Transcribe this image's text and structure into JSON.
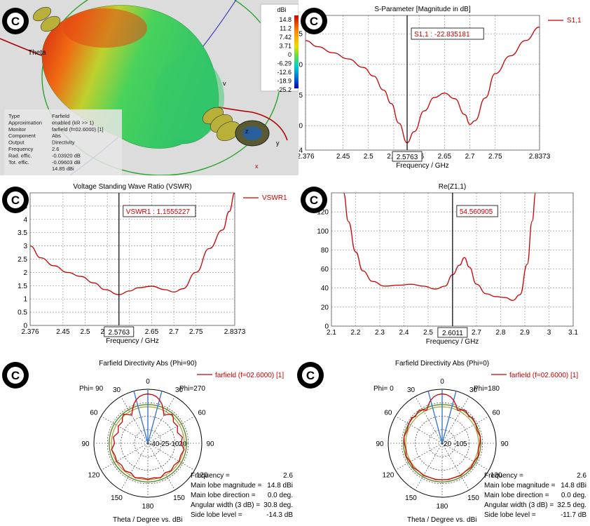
{
  "copyright_mark": "C",
  "colors": {
    "curve": "#cc0000",
    "grid": "#999999",
    "marker": "#000000",
    "blue": "#3a78c9",
    "green": "#5a8a2a",
    "olive": "#a89c3a"
  },
  "farfield3d": {
    "axis_label": "Theta",
    "scale_unit": "dBi",
    "scale_values": [
      "14.8",
      "11.2",
      "7.42",
      "3.71",
      "0",
      "-6.29",
      "-12.6",
      "-18.9",
      "-25.2"
    ],
    "axis_letters": {
      "z": "z",
      "y": "y",
      "x": "x",
      "v": "v"
    },
    "info": [
      {
        "key": "Type",
        "value": "Farfield"
      },
      {
        "key": "Approximation",
        "value": "enabled (kR >> 1)"
      },
      {
        "key": "Monitor",
        "value": "farfield (f=02.6000) [1]"
      },
      {
        "key": "Component",
        "value": "Abs"
      },
      {
        "key": "Output",
        "value": "Directivity"
      },
      {
        "key": "Frequency",
        "value": "2.6"
      },
      {
        "key": "Rad. effic.",
        "value": "-0.03920 dB"
      },
      {
        "key": "Tot. effic.",
        "value": "-0.09603 dB"
      },
      {
        "key": "",
        "value": "14.85 dBi"
      }
    ]
  },
  "chart_data": [
    {
      "id": "s11",
      "type": "line",
      "title": "S-Parameter [Magnitude in dB]",
      "xlabel": "Frequency / GHz",
      "ylabel": "",
      "xlim": [
        2.376,
        2.8373
      ],
      "ylim": [
        -24,
        -2
      ],
      "xticks": [
        "2.376",
        "2.45",
        "2.5",
        "2.55",
        "2.6",
        "2.65",
        "2.7",
        "2.75",
        "2.8373"
      ],
      "xtick_values": [
        2.376,
        2.45,
        2.5,
        2.55,
        2.6,
        2.65,
        2.7,
        2.75,
        2.8373
      ],
      "yticks": [
        "-5",
        "-10",
        "-15",
        "-20",
        "-24"
      ],
      "ytick_values": [
        -5,
        -10,
        -15,
        -20,
        -24
      ],
      "grid": true,
      "legend": "top-right",
      "series": [
        {
          "name": "S1,1",
          "x": [
            2.376,
            2.4,
            2.43,
            2.46,
            2.49,
            2.51,
            2.53,
            2.545,
            2.56,
            2.5763,
            2.59,
            2.61,
            2.63,
            2.65,
            2.67,
            2.69,
            2.7,
            2.71,
            2.73,
            2.75,
            2.78,
            2.81,
            2.8373
          ],
          "y": [
            -6.1,
            -7.1,
            -8.1,
            -9.1,
            -10.5,
            -11.9,
            -14.2,
            -16.4,
            -19.6,
            -22.8,
            -21.0,
            -17.6,
            -15.4,
            -14.7,
            -15.6,
            -18.2,
            -19.8,
            -19.2,
            -15.5,
            -11.5,
            -8.6,
            -6.1,
            -3.9
          ]
        }
      ],
      "marker": {
        "x": 2.5763,
        "label": "S1,1 : -22.835181",
        "x_label": "2.5763"
      }
    },
    {
      "id": "vswr",
      "type": "line",
      "title": "Voltage Standing Wave Ratio (VSWR)",
      "xlabel": "Frequency / GHz",
      "ylabel": "",
      "xlim": [
        2.376,
        2.8373
      ],
      "ylim": [
        0,
        5
      ],
      "xticks": [
        "2.376",
        "2.45",
        "2.5",
        "2.55",
        "2.6",
        "2.65",
        "2.7",
        "2.75",
        "2.8373"
      ],
      "xtick_values": [
        2.376,
        2.45,
        2.5,
        2.55,
        2.6,
        2.65,
        2.7,
        2.75,
        2.8373
      ],
      "yticks": [
        "0",
        "0.5",
        "1",
        "1.5",
        "2",
        "2.5",
        "3",
        "3.5",
        "4",
        "4.5"
      ],
      "ytick_values": [
        0,
        0.5,
        1,
        1.5,
        2,
        2.5,
        3,
        3.5,
        4,
        4.5
      ],
      "grid": true,
      "legend": "top-right",
      "series": [
        {
          "name": "VSWR1",
          "x": [
            2.376,
            2.4,
            2.43,
            2.46,
            2.49,
            2.52,
            2.545,
            2.5763,
            2.6,
            2.62,
            2.65,
            2.68,
            2.7,
            2.72,
            2.75,
            2.78,
            2.81,
            2.825,
            2.8373
          ],
          "y": [
            3.0,
            2.55,
            2.25,
            2.0,
            1.85,
            1.6,
            1.35,
            1.16,
            1.3,
            1.42,
            1.48,
            1.35,
            1.26,
            1.38,
            2.0,
            2.9,
            3.6,
            4.3,
            5.0
          ]
        }
      ],
      "marker": {
        "x": 2.5763,
        "label": "VSWR1 : 1.1555227",
        "x_label": "2.5763"
      }
    },
    {
      "id": "rez",
      "type": "line",
      "title": "Re(Z1,1)",
      "xlabel": "Frequency / GHz",
      "ylabel": "",
      "xlim": [
        2.1,
        3.1
      ],
      "ylim": [
        0,
        140
      ],
      "xticks": [
        "2.1",
        "2.2",
        "2.3",
        "2.4",
        "2.5",
        "2.6",
        "2.7",
        "2.8",
        "2.9",
        "3",
        "3.1"
      ],
      "xtick_values": [
        2.1,
        2.2,
        2.3,
        2.4,
        2.5,
        2.6,
        2.7,
        2.8,
        2.9,
        3.0,
        3.1
      ],
      "yticks": [
        "0",
        "20",
        "40",
        "60",
        "80",
        "100",
        "120"
      ],
      "ytick_values": [
        0,
        20,
        40,
        60,
        80,
        100,
        120
      ],
      "grid": true,
      "legend": "none",
      "series": [
        {
          "name": "",
          "x": [
            2.15,
            2.17,
            2.2,
            2.23,
            2.27,
            2.32,
            2.38,
            2.43,
            2.48,
            2.53,
            2.57,
            2.6011,
            2.63,
            2.65,
            2.67,
            2.7,
            2.74,
            2.78,
            2.82,
            2.85,
            2.88,
            2.91,
            2.93,
            2.945
          ],
          "y": [
            140,
            110,
            78,
            58,
            47,
            42,
            43,
            44,
            42,
            39,
            42,
            54,
            64,
            72,
            62,
            44,
            34,
            31,
            30,
            27,
            33,
            65,
            110,
            140
          ]
        }
      ],
      "marker": {
        "x": 2.6011,
        "label": "54.560905",
        "x_label": "2.6011"
      }
    },
    {
      "id": "polar90",
      "type": "polar",
      "title": "Farfield Directivity Abs (Phi=90)",
      "legend_label": "farfield (f=02.6000) [1]",
      "left_label": "Phi= 90",
      "right_label": "Phi=270",
      "angle_labels": [
        "0",
        "30",
        "60",
        "90",
        "120",
        "150",
        "180",
        "150",
        "120",
        "90",
        "60",
        "30"
      ],
      "radial_labels": [
        "-40",
        "-25",
        "-10",
        "20"
      ],
      "radial_values": [
        -40,
        -25,
        -10,
        5,
        20
      ],
      "rlim": [
        -40,
        20
      ],
      "xlabel": "Theta / Degree vs. dBi",
      "series": [
        {
          "name": "farfield (f=02.6000) [1]",
          "theta": [
            0,
            5,
            10,
            15,
            20,
            25,
            30,
            35,
            40,
            45,
            50,
            60,
            70,
            80,
            90,
            100,
            110,
            120,
            130,
            140,
            150,
            160,
            170,
            180
          ],
          "r": [
            14.8,
            14.3,
            12.8,
            10.0,
            6.0,
            0.5,
            -4,
            -1,
            2,
            0,
            -3,
            -2,
            -5,
            -1,
            -3,
            1,
            -1,
            0,
            -2,
            0,
            -2,
            1,
            -1,
            0
          ]
        }
      ],
      "info": [
        {
          "key": "Frequency =",
          "value": "2.6"
        },
        {
          "key": "Main lobe magnitude =",
          "value": "14.8 dBi"
        },
        {
          "key": "Main lobe direction =",
          "value": "0.0 deg."
        },
        {
          "key": "Angular width (3 dB) =",
          "value": "30.8 deg."
        },
        {
          "key": "Side lobe level =",
          "value": "-14.3 dB"
        }
      ]
    },
    {
      "id": "polar0",
      "type": "polar",
      "title": "Farfield Directivity Abs (Phi=0)",
      "legend_label": "farfield (f=02.6000) [1]",
      "left_label": "Phi=  0",
      "right_label": "Phi=180",
      "angle_labels": [
        "0",
        "30",
        "60",
        "90",
        "120",
        "150",
        "180",
        "150",
        "120",
        "90",
        "60",
        "30"
      ],
      "radial_labels": [
        "20",
        "-10",
        "5"
      ],
      "radial_values": [
        -40,
        -25,
        -10,
        5,
        20
      ],
      "rlim": [
        -40,
        20
      ],
      "xlabel": "Theta / Degree vs. dBi",
      "series": [
        {
          "name": "farfield (f=02.6000) [1]",
          "theta": [
            0,
            5,
            10,
            15,
            20,
            25,
            30,
            35,
            40,
            45,
            50,
            60,
            70,
            80,
            90,
            100,
            110,
            120,
            130,
            140,
            150,
            160,
            170,
            180
          ],
          "r": [
            14.8,
            14.3,
            12.5,
            9.5,
            5.0,
            0.5,
            3.0,
            4.5,
            3.5,
            2.0,
            4.0,
            3.0,
            1.5,
            3.0,
            2.0,
            1.0,
            2.5,
            1.0,
            2.0,
            0.5,
            1.5,
            0.5,
            1.0,
            0.5
          ]
        }
      ],
      "info": [
        {
          "key": "Frequency =",
          "value": "2.6"
        },
        {
          "key": "Main lobe magnitude =",
          "value": "14.8 dBi"
        },
        {
          "key": "Main lobe direction =",
          "value": "0.0 deg."
        },
        {
          "key": "Angular width (3 dB) =",
          "value": "32.5 deg."
        },
        {
          "key": "Side lobe level =",
          "value": "-11.7 dB"
        }
      ]
    }
  ]
}
